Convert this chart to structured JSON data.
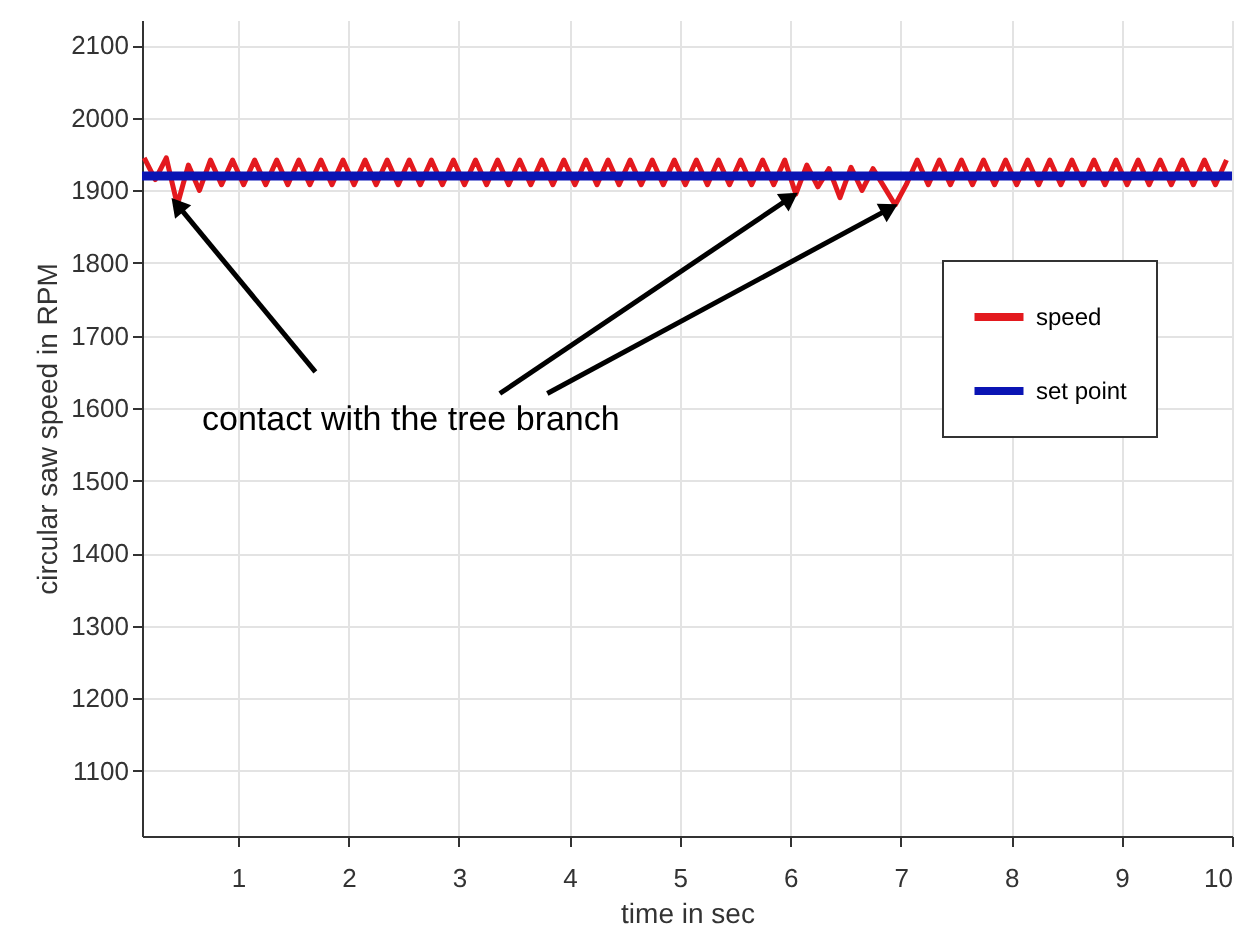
{
  "chart_data": {
    "type": "line",
    "xlabel": "time in sec",
    "ylabel": "circular saw speed in RPM",
    "xlim": [
      0.13,
      10
    ],
    "ylim": [
      1010,
      2135
    ],
    "xticks": [
      1,
      2,
      3,
      4,
      5,
      6,
      7,
      8,
      9,
      10
    ],
    "yticks": [
      1100,
      1200,
      1300,
      1400,
      1500,
      1600,
      1700,
      1800,
      1900,
      2000,
      2100
    ],
    "grid": true,
    "legend": "top right",
    "annotations": [
      {
        "text": "contact with the tree branch",
        "x": 0.45,
        "y": 1880
      }
    ],
    "series": [
      {
        "name": "speed",
        "color": "#e3191e",
        "x": [
          0.15,
          0.25,
          0.35,
          0.45,
          0.55,
          0.65,
          0.75,
          0.85,
          0.95,
          1.05,
          1.15,
          1.25,
          1.35,
          1.45,
          1.55,
          1.65,
          1.75,
          1.85,
          1.95,
          2.05,
          2.15,
          2.25,
          2.35,
          2.45,
          2.55,
          2.65,
          2.75,
          2.85,
          2.95,
          3.05,
          3.15,
          3.25,
          3.35,
          3.45,
          3.55,
          3.65,
          3.75,
          3.85,
          3.95,
          4.05,
          4.15,
          4.25,
          4.35,
          4.45,
          4.55,
          4.65,
          4.75,
          4.85,
          4.95,
          5.05,
          5.15,
          5.25,
          5.35,
          5.45,
          5.55,
          5.65,
          5.75,
          5.85,
          5.95,
          6.05,
          6.15,
          6.25,
          6.35,
          6.45,
          6.55,
          6.65,
          6.75,
          6.85,
          6.95,
          7.05,
          7.15,
          7.25,
          7.35,
          7.45,
          7.55,
          7.65,
          7.75,
          7.85,
          7.95,
          8.05,
          8.15,
          8.25,
          8.35,
          8.45,
          8.55,
          8.65,
          8.75,
          8.85,
          8.95,
          9.05,
          9.15,
          9.25,
          9.35,
          9.45,
          9.55,
          9.65,
          9.75,
          9.85,
          9.95
        ],
        "values": [
          1945,
          1915,
          1945,
          1880,
          1935,
          1900,
          1942,
          1908,
          1942,
          1908,
          1942,
          1908,
          1942,
          1908,
          1942,
          1908,
          1942,
          1908,
          1942,
          1908,
          1942,
          1908,
          1942,
          1908,
          1942,
          1908,
          1942,
          1908,
          1942,
          1908,
          1942,
          1908,
          1942,
          1908,
          1942,
          1908,
          1942,
          1908,
          1942,
          1908,
          1942,
          1908,
          1942,
          1908,
          1942,
          1908,
          1942,
          1908,
          1942,
          1908,
          1942,
          1908,
          1942,
          1908,
          1942,
          1908,
          1942,
          1908,
          1942,
          1895,
          1935,
          1905,
          1930,
          1890,
          1932,
          1900,
          1930,
          1905,
          1880,
          1908,
          1942,
          1908,
          1942,
          1908,
          1942,
          1908,
          1942,
          1908,
          1942,
          1908,
          1942,
          1908,
          1942,
          1908,
          1942,
          1908,
          1942,
          1908,
          1942,
          1908,
          1942,
          1908,
          1942,
          1908,
          1942,
          1908,
          1942,
          1908,
          1942
        ]
      },
      {
        "name": "set point",
        "color": "#0a14b4",
        "x": [
          0.13,
          10
        ],
        "values": [
          1920,
          1920
        ]
      }
    ]
  }
}
